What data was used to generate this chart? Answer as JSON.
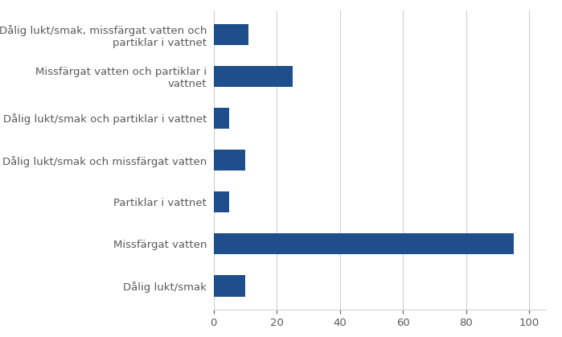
{
  "categories": [
    "Dålig lukt/smak, missfärgat vatten och\npartiklar i vattnet",
    "Missfärgat vatten och partiklar i\nvattnet",
    "Dålig lukt/smak och partiklar i vattnet",
    "Dålig lukt/smak och missfärgat vatten",
    "Partiklar i vattnet",
    "Missfärgat vatten",
    "Dålig lukt/smak"
  ],
  "values": [
    11,
    25,
    5,
    10,
    5,
    95,
    10
  ],
  "bar_color": "#1F4E8C",
  "xlim": [
    0,
    105
  ],
  "xticks": [
    0,
    20,
    40,
    60,
    80,
    100
  ],
  "background_color": "#ffffff",
  "grid_color": "#d0d0d0",
  "label_color": "#595959",
  "label_fontsize": 9.5,
  "tick_fontsize": 9.5,
  "bar_height": 0.5
}
